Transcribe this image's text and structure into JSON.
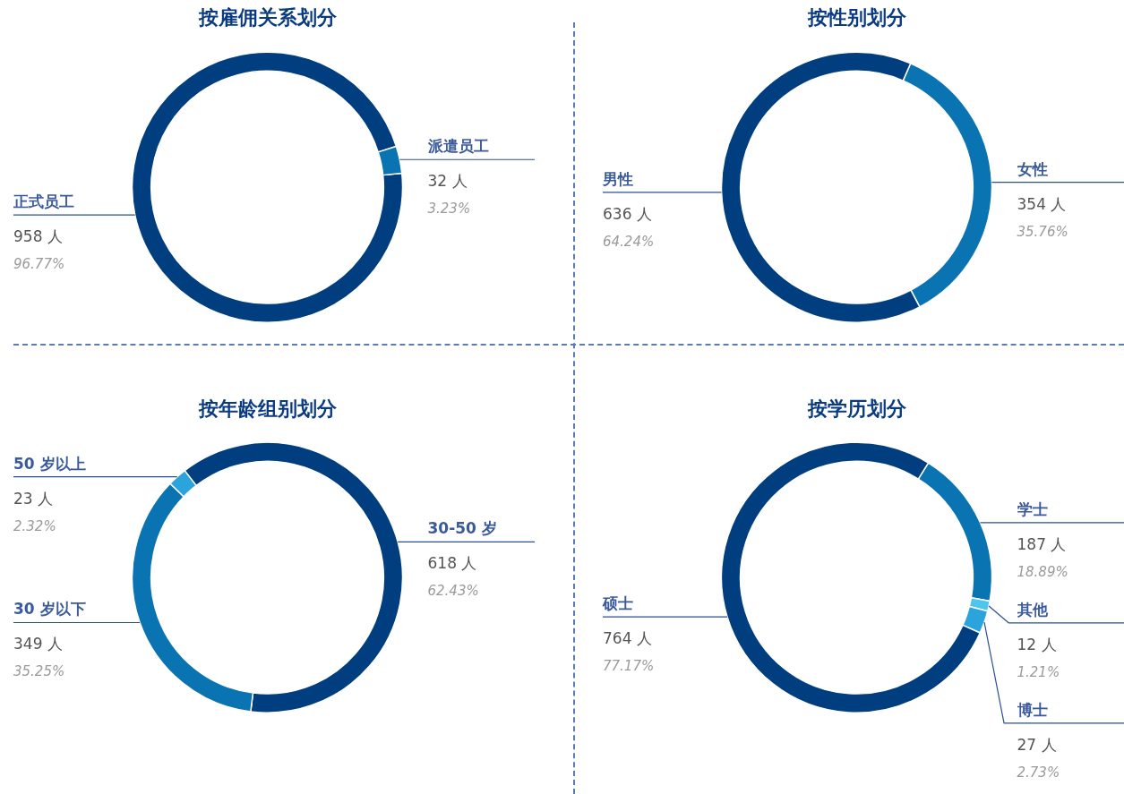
{
  "chart_data": [
    {
      "type": "donut",
      "title": "按雇佣关系划分",
      "categories": [
        "正式员工",
        "派遣员工"
      ],
      "values": [
        958,
        32
      ],
      "colors": [
        "#003e80",
        "#0a74b3"
      ],
      "value_labels": [
        "958 人\n96.77%",
        "32 人\n3.23%"
      ],
      "legend": false
    },
    {
      "type": "donut",
      "title": "按性别划分",
      "categories": [
        "女性",
        "男性"
      ],
      "values": [
        354,
        636
      ],
      "colors": [
        "#0a74b3",
        "#003e80"
      ],
      "value_labels": [
        "354 人\n35.76%",
        "636 人\n64.24%"
      ],
      "legend": false
    },
    {
      "type": "donut",
      "title": "按年龄组别划分",
      "categories": [
        "50 岁以上",
        "30-50 岁",
        "30 岁以下"
      ],
      "values": [
        23,
        618,
        349
      ],
      "colors": [
        "#2ba3dd",
        "#003e80",
        "#0a74b3"
      ],
      "value_labels": [
        "23 人\n2.32%",
        "618 人\n62.43%",
        "349 人\n35.25%"
      ],
      "legend": false
    },
    {
      "type": "donut",
      "title": "按学历划分",
      "categories": [
        "学士",
        "其他",
        "博士",
        "硕士"
      ],
      "values": [
        187,
        12,
        27,
        764
      ],
      "colors": [
        "#0a74b3",
        "#4ec4ef",
        "#2ba3dd",
        "#003e80"
      ],
      "value_labels": [
        "187 人\n18.89%",
        "12 人\n1.21%",
        "27 人\n2.73%",
        "764 人\n77.17%"
      ],
      "legend": false
    }
  ]
}
